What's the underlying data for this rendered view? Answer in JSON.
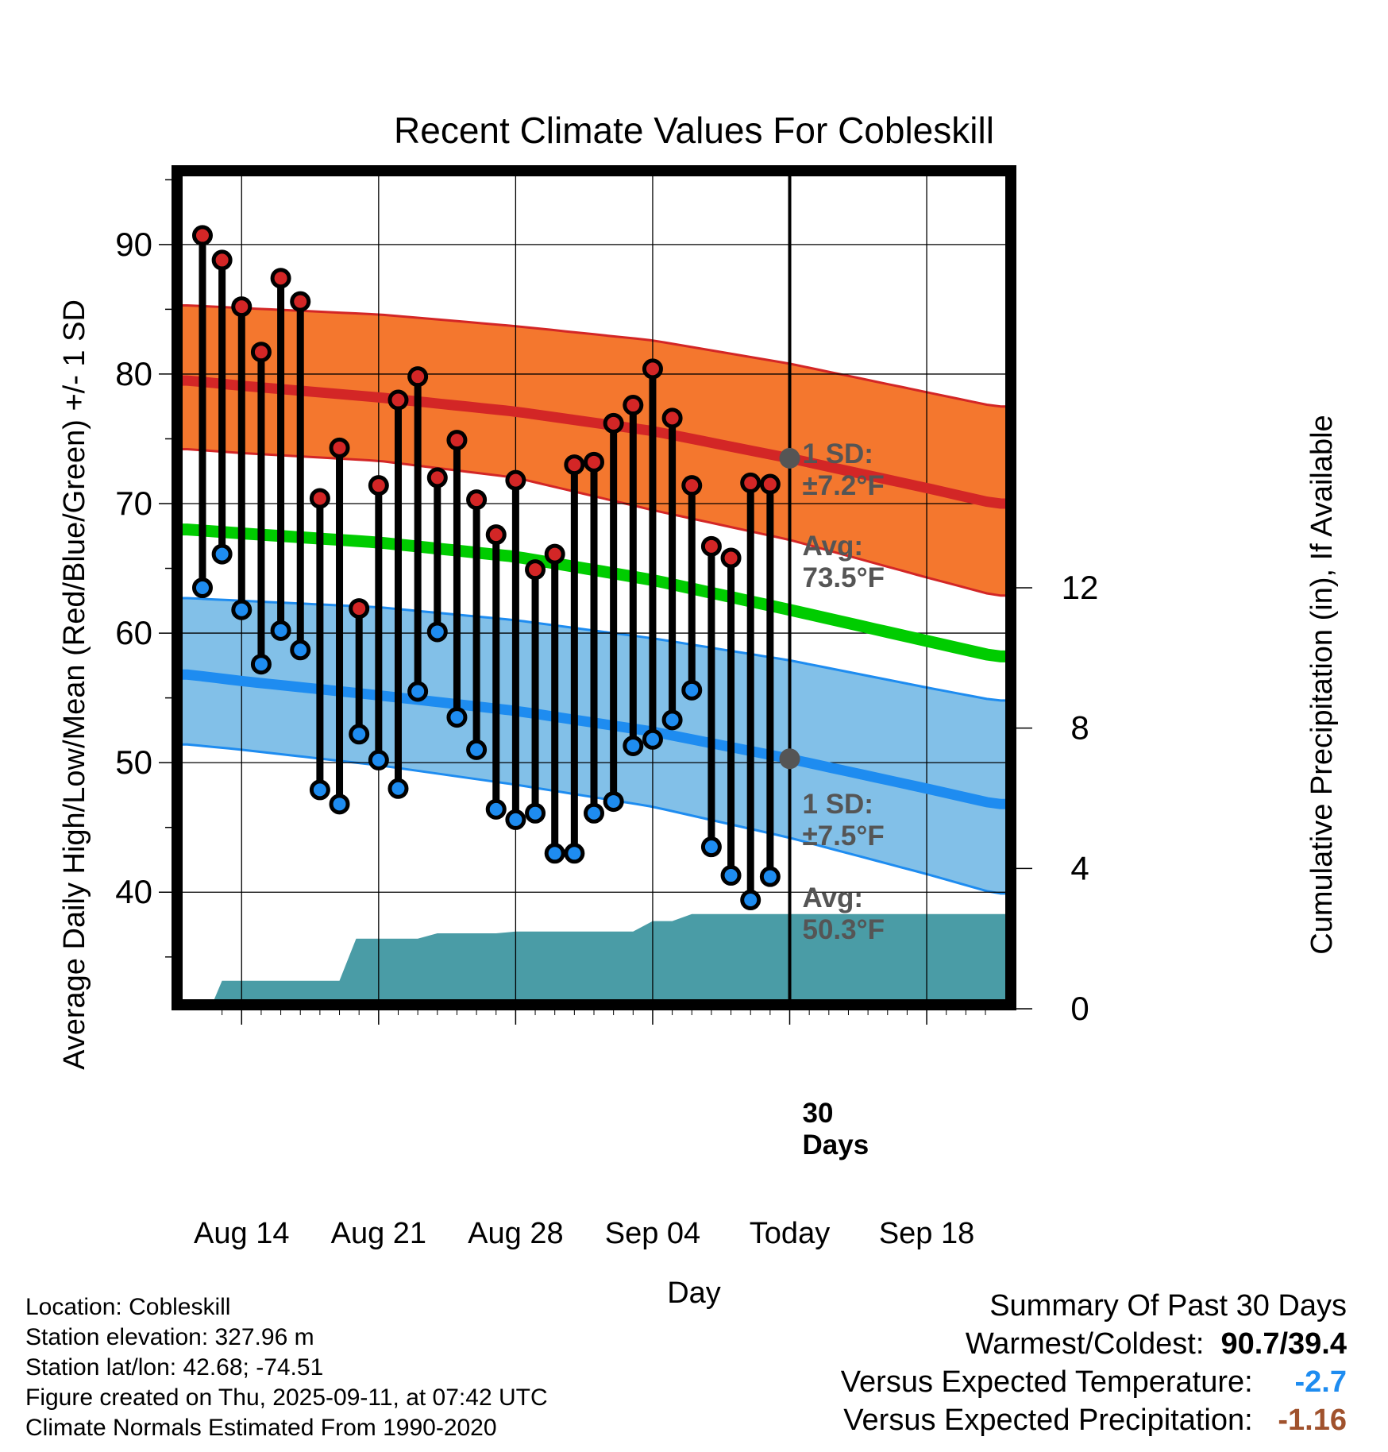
{
  "chart_data": {
    "type": "line",
    "title": "Recent Climate Values For Cobleskill",
    "xlabel": "Day",
    "ylabel": "Average Daily High/Low/Mean (Red/Blue/Green) +/- 1 SD",
    "y2label": "Cumulative Precipitation (in), If Available",
    "ylim": [
      31,
      96
    ],
    "y2lim": [
      0,
      24
    ],
    "xlim": [
      -3.5,
      39.5
    ],
    "x_ticks": [
      {
        "x": 0,
        "label": "Aug 14"
      },
      {
        "x": 7,
        "label": "Aug 21"
      },
      {
        "x": 14,
        "label": "Aug 28"
      },
      {
        "x": 21,
        "label": "Sep 04"
      },
      {
        "x": 28,
        "label": "Today"
      },
      {
        "x": 35,
        "label": "Sep 18"
      }
    ],
    "y_ticks": [
      40,
      50,
      60,
      70,
      80,
      90
    ],
    "y2_ticks": [
      0,
      4,
      8,
      12
    ],
    "today_x": 28,
    "normals": {
      "x": [
        -2.7,
        0,
        7,
        14,
        21,
        28,
        35,
        38.5
      ],
      "high_mean": [
        79.5,
        79.1,
        78.2,
        77.1,
        75.6,
        73.5,
        71.2,
        70.0
      ],
      "high_upper": [
        85.3,
        85.1,
        84.6,
        83.7,
        82.6,
        80.8,
        78.6,
        77.5
      ],
      "high_lower": [
        74.2,
        73.9,
        73.3,
        72.0,
        69.5,
        67.2,
        64.3,
        62.9
      ],
      "mean": [
        68.0,
        67.7,
        67.0,
        65.9,
        64.1,
        61.8,
        59.4,
        58.2
      ],
      "low_mean": [
        56.8,
        56.3,
        55.2,
        54.0,
        52.4,
        50.3,
        48.0,
        46.8
      ],
      "low_upper": [
        62.7,
        62.5,
        62.0,
        61.0,
        59.6,
        57.9,
        55.8,
        54.8
      ],
      "low_lower": [
        51.4,
        51.0,
        49.8,
        48.3,
        46.6,
        44.2,
        41.4,
        39.9
      ]
    },
    "series": [
      {
        "name": "High",
        "x": [
          -2,
          -1,
          0,
          1,
          2,
          3,
          4,
          5,
          6,
          7,
          8,
          9,
          10,
          11,
          12,
          13,
          14,
          15,
          16,
          17,
          18,
          19,
          20,
          21,
          22,
          23,
          24,
          25,
          26,
          27
        ],
        "values": [
          90.7,
          88.8,
          85.2,
          81.7,
          87.4,
          85.6,
          70.4,
          74.3,
          61.9,
          71.4,
          78.0,
          79.8,
          72.0,
          74.9,
          70.3,
          67.6,
          71.8,
          64.9,
          66.1,
          73.0,
          73.2,
          76.2,
          77.6,
          80.4,
          76.6,
          71.4,
          66.7,
          65.8,
          71.6,
          71.5
        ]
      },
      {
        "name": "Low",
        "x": [
          -2,
          -1,
          0,
          1,
          2,
          3,
          4,
          5,
          6,
          7,
          8,
          9,
          10,
          11,
          12,
          13,
          14,
          15,
          16,
          17,
          18,
          19,
          20,
          21,
          22,
          23,
          24,
          25,
          26,
          27
        ],
        "values": [
          63.5,
          66.1,
          61.8,
          57.6,
          60.2,
          58.7,
          47.9,
          46.8,
          52.2,
          50.2,
          48.0,
          55.5,
          60.1,
          53.5,
          51.0,
          46.4,
          45.6,
          46.1,
          43.0,
          43.0,
          46.1,
          47.0,
          51.3,
          51.8,
          53.3,
          55.6,
          43.5,
          41.3,
          39.4,
          41.2
        ]
      }
    ],
    "precip": {
      "x": [
        -1.6,
        -1,
        0,
        1,
        2,
        3,
        4.3,
        5,
        5.85,
        6,
        7,
        8,
        9,
        10,
        11,
        12,
        13,
        14,
        15,
        16,
        17,
        18,
        19,
        20,
        21,
        21.8,
        22,
        23,
        24,
        25,
        26,
        27,
        28,
        29,
        30,
        31,
        32,
        33,
        34,
        35,
        36,
        37,
        38,
        38.5
      ],
      "values": [
        0,
        0.8,
        0.8,
        0.8,
        0.8,
        0.8,
        0.8,
        0.8,
        2.0,
        2.0,
        2.0,
        2.0,
        2.0,
        2.15,
        2.15,
        2.15,
        2.15,
        2.2,
        2.2,
        2.2,
        2.2,
        2.2,
        2.2,
        2.2,
        2.5,
        2.5,
        2.5,
        2.7,
        2.7,
        2.7,
        2.7,
        2.7,
        2.7,
        2.7,
        2.7,
        2.7,
        2.7,
        2.7,
        2.7,
        2.7,
        2.7,
        2.7,
        2.7,
        2.7
      ]
    },
    "annotations": {
      "high_sd_1": "1 SD:",
      "high_sd_2": "±7.2°F",
      "high_avg_1": "Avg:",
      "high_avg_2": "73.5°F",
      "low_sd_1": "1 SD:",
      "low_sd_2": "±7.5°F",
      "low_avg_1": "Avg:",
      "low_avg_2": "50.3°F",
      "days_1": "30",
      "days_2": "Days"
    },
    "colors": {
      "high_band": "#f4772e",
      "high_line": "#d32626",
      "low_band": "#82c0e8",
      "low_line": "#1e8cf0",
      "mean_line": "#00cc00",
      "precip": "#4a9ca6",
      "high_marker": "#d32626",
      "low_marker": "#1e8cf0",
      "annotation": "#555555"
    }
  },
  "info": {
    "location": "Location: Cobleskill",
    "elevation": "Station elevation: 327.96 m",
    "latlon": "Station lat/lon: 42.68; -74.51",
    "created": "Figure created on Thu, 2025-09-11, at 07:42 UTC",
    "normals": "Climate Normals Estimated From 1990-2020"
  },
  "summary": {
    "title": "Summary Of Past 30 Days",
    "warm_label": "Warmest/Coldest:",
    "warm_value": "90.7/39.4",
    "temp_label": "Versus Expected Temperature:",
    "temp_value": "-2.7",
    "temp_color": "#1e8cf0",
    "precip_label": "Versus Expected Precipitation:",
    "precip_value": "-1.16",
    "precip_color": "#a0522d"
  }
}
